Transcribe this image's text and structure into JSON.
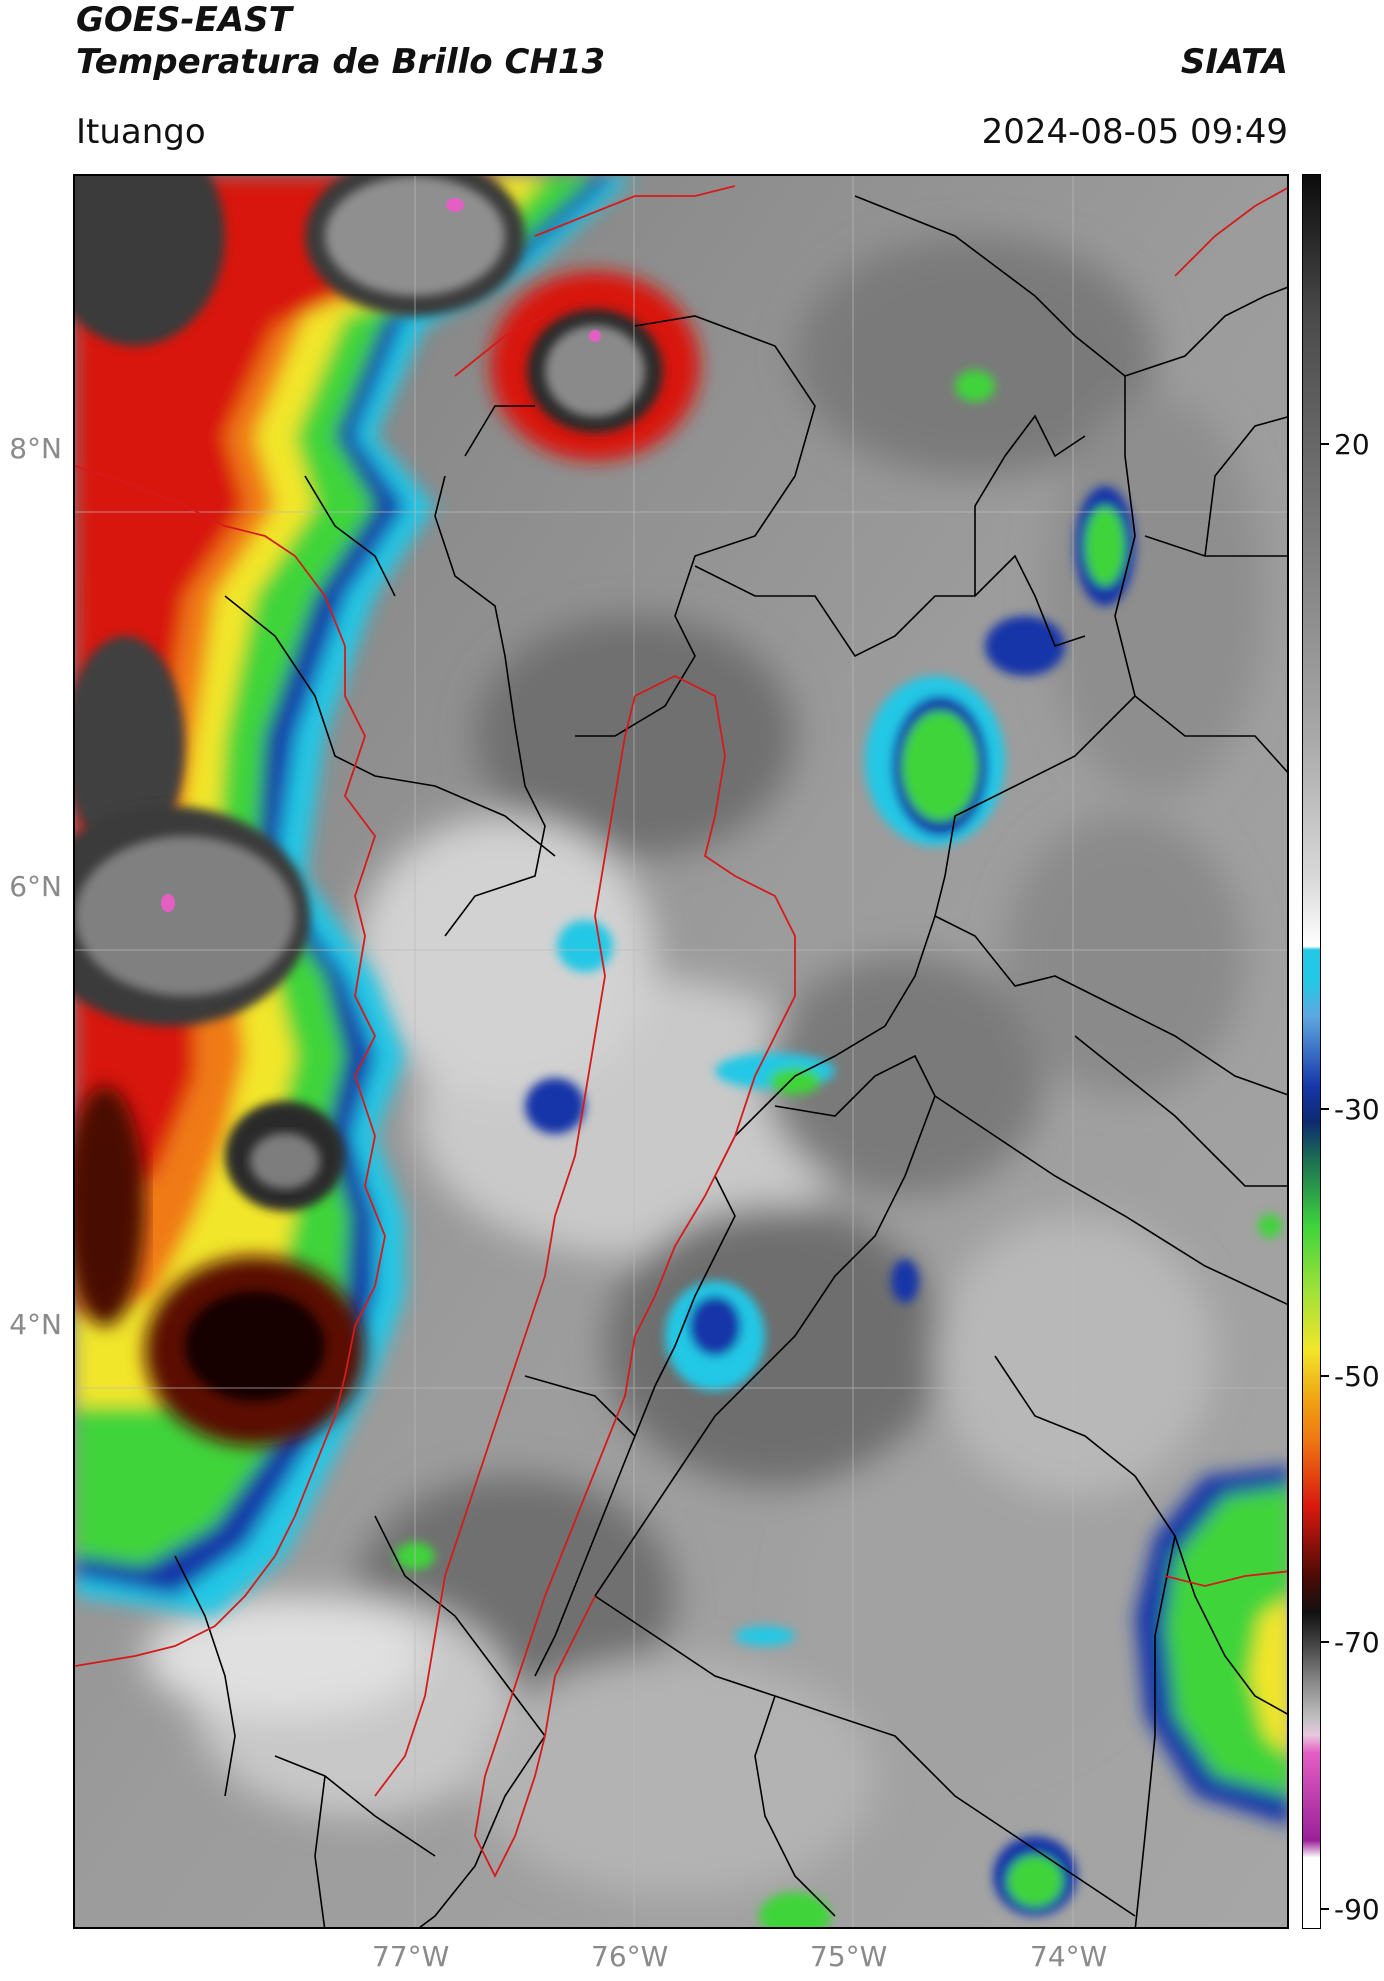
{
  "header": {
    "satellite": "GOES-EAST",
    "product": "Temperatura de Brillo CH13",
    "brand": "SIATA",
    "location": "Ituango",
    "datetime": "2024-08-05 09:49"
  },
  "map": {
    "lat_labels": [
      "8°N",
      "6°N",
      "4°N"
    ],
    "lon_labels": [
      "77°W",
      "76°W",
      "75°W",
      "74°W"
    ],
    "extent": {
      "lon": [
        -78.55,
        -73.0
      ],
      "lat": [
        1.5,
        9.5
      ]
    }
  },
  "colorbar": {
    "tick_labels": [
      "20",
      "-30",
      "-50",
      "-70",
      "-90"
    ],
    "range": [
      -95,
      40
    ],
    "colors": {
      "warm_gray": "#8c8c8c",
      "light_gray": "#d8d8d8",
      "cyan": "#23c8e6",
      "blue": "#1636a8",
      "green": "#3fd43b",
      "yellow": "#f2e62a",
      "orange": "#f07a12",
      "red": "#d8180f",
      "dark_red": "#4a0b05",
      "black": "#111111",
      "pink": "#e45fc4",
      "purple": "#9a1f98"
    }
  }
}
